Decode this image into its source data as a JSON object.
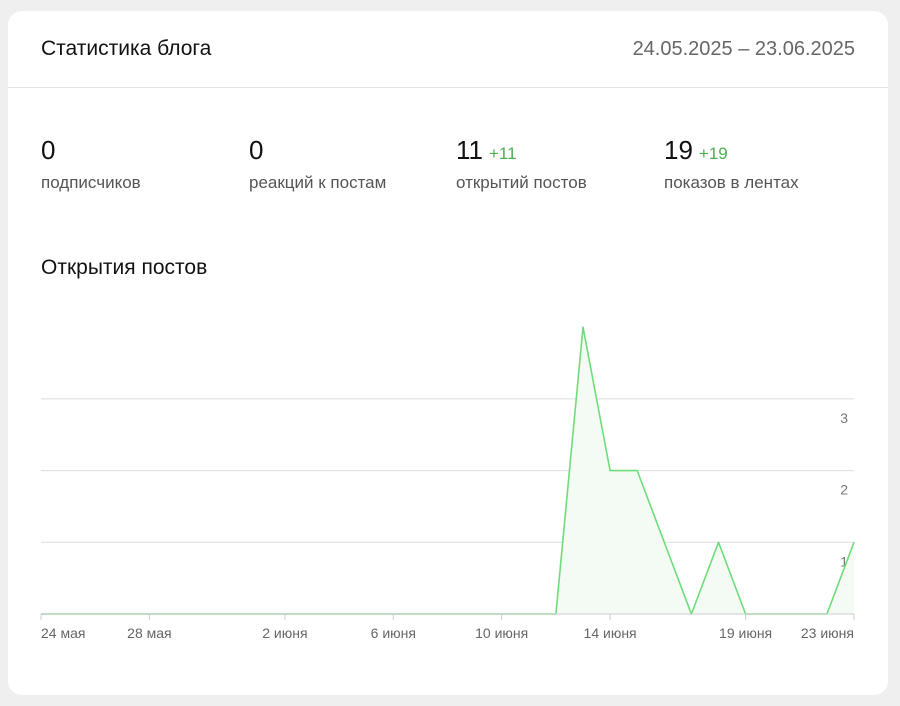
{
  "header": {
    "title": "Статистика блога",
    "date_range": "24.05.2025 – 23.06.2025"
  },
  "stats": [
    {
      "value": "0",
      "delta": "",
      "label": "подписчиков"
    },
    {
      "value": "0",
      "delta": "",
      "label": "реакций к постам"
    },
    {
      "value": "11",
      "delta": "+11",
      "label": "открытий постов"
    },
    {
      "value": "19",
      "delta": "+19",
      "label": "показов в лентах"
    }
  ],
  "chart_section": {
    "title": "Открытия постов"
  },
  "colors": {
    "line": "#6fdc7a",
    "fill": "#f3fbf4",
    "delta": "#4caf50"
  },
  "chart_data": {
    "type": "area",
    "title": "Открытия постов",
    "x": [
      "24.05",
      "25.05",
      "26.05",
      "27.05",
      "28.05",
      "29.05",
      "30.05",
      "31.05",
      "01.06",
      "02.06",
      "03.06",
      "04.06",
      "05.06",
      "06.06",
      "07.06",
      "08.06",
      "09.06",
      "10.06",
      "11.06",
      "12.06",
      "13.06",
      "14.06",
      "15.06",
      "16.06",
      "17.06",
      "18.06",
      "19.06",
      "20.06",
      "21.06",
      "22.06",
      "23.06"
    ],
    "values": [
      0,
      0,
      0,
      0,
      0,
      0,
      0,
      0,
      0,
      0,
      0,
      0,
      0,
      0,
      0,
      0,
      0,
      0,
      0,
      0,
      4,
      2,
      2,
      1,
      0,
      1,
      0,
      0,
      0,
      0,
      1
    ],
    "x_ticks": [
      {
        "x": "24.05",
        "label": "24 мая"
      },
      {
        "x": "28.05",
        "label": "28 мая"
      },
      {
        "x": "02.06",
        "label": "2 июня"
      },
      {
        "x": "06.06",
        "label": "6 июня"
      },
      {
        "x": "10.06",
        "label": "10 июня"
      },
      {
        "x": "14.06",
        "label": "14 июня"
      },
      {
        "x": "19.06",
        "label": "19 июня"
      },
      {
        "x": "23.06",
        "label": "23 июня"
      }
    ],
    "y_ticks": [
      1,
      2,
      3
    ],
    "ylim": [
      0,
      4
    ],
    "grid": true,
    "y_axis_side": "right"
  }
}
